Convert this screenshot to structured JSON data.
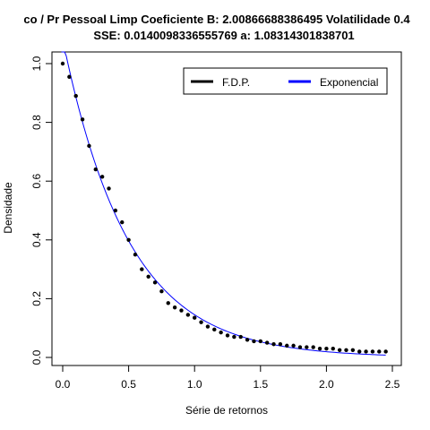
{
  "chart_data": {
    "type": "line",
    "title_line1": "co / Pr Pessoal Limp Coeficiente B:  2.00866688386495 Volatilidade 0.4",
    "title_line2": "SSE: 0.0140098336555769  a:  1.08314301838701",
    "xlabel": "Série de retornos",
    "ylabel": "Densidade",
    "xlim": [
      -0.1,
      2.55
    ],
    "ylim": [
      -0.03,
      1.03
    ],
    "x_ticks": [
      0.0,
      0.5,
      1.0,
      1.5,
      2.0,
      2.5
    ],
    "x_tick_labels": [
      "0.0",
      "0.5",
      "1.0",
      "1.5",
      "2.0",
      "2.5"
    ],
    "y_ticks": [
      0.0,
      0.2,
      0.4,
      0.6,
      0.8,
      1.0
    ],
    "y_tick_labels": [
      "0.0",
      "0.2",
      "0.4",
      "0.6",
      "0.8",
      "1.0"
    ],
    "legend_position": "top-right",
    "series": [
      {
        "name": "F.D.P.",
        "kind": "points",
        "color": "#000000",
        "x": [
          0.0,
          0.05,
          0.1,
          0.15,
          0.2,
          0.25,
          0.3,
          0.35,
          0.4,
          0.45,
          0.5,
          0.55,
          0.6,
          0.65,
          0.7,
          0.75,
          0.8,
          0.85,
          0.9,
          0.95,
          1.0,
          1.05,
          1.1,
          1.15,
          1.2,
          1.25,
          1.3,
          1.35,
          1.4,
          1.45,
          1.5,
          1.55,
          1.6,
          1.65,
          1.7,
          1.75,
          1.8,
          1.85,
          1.9,
          1.95,
          2.0,
          2.05,
          2.1,
          2.15,
          2.2,
          2.25,
          2.3,
          2.35,
          2.4,
          2.45
        ],
        "y": [
          1.0,
          0.955,
          0.89,
          0.81,
          0.72,
          0.64,
          0.615,
          0.575,
          0.5,
          0.46,
          0.4,
          0.35,
          0.3,
          0.275,
          0.255,
          0.225,
          0.185,
          0.17,
          0.16,
          0.145,
          0.135,
          0.12,
          0.105,
          0.095,
          0.085,
          0.075,
          0.07,
          0.07,
          0.06,
          0.055,
          0.055,
          0.05,
          0.045,
          0.045,
          0.04,
          0.04,
          0.035,
          0.035,
          0.035,
          0.03,
          0.03,
          0.03,
          0.025,
          0.025,
          0.025,
          0.02,
          0.02,
          0.02,
          0.02,
          0.02
        ]
      },
      {
        "name": "Exponencial",
        "kind": "line",
        "color": "#0000ff",
        "function": "a*exp(-B*x)",
        "a": 1.08314301838701,
        "B": 2.00866688386495,
        "x_range": [
          -0.01,
          2.45
        ]
      }
    ]
  }
}
